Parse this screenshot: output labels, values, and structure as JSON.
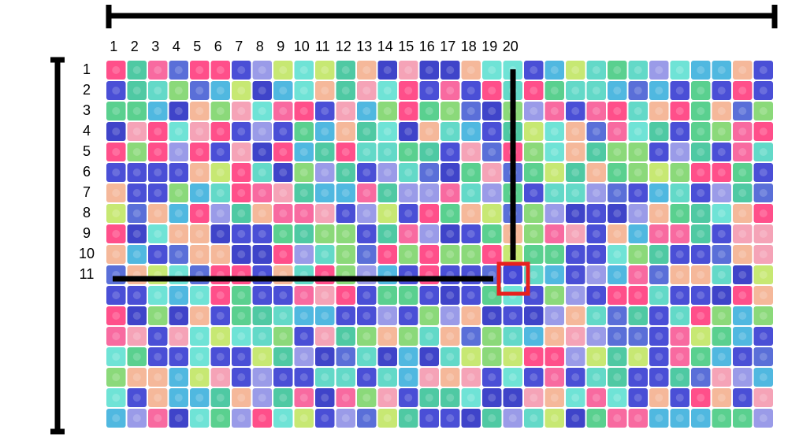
{
  "column_labels": [
    "1",
    "2",
    "3",
    "4",
    "5",
    "6",
    "7",
    "8",
    "9",
    "10",
    "11",
    "12",
    "13",
    "14",
    "15",
    "16",
    "17",
    "18",
    "19",
    "20"
  ],
  "row_labels": [
    "1",
    "2",
    "3",
    "4",
    "5",
    "6",
    "7",
    "8",
    "9",
    "10",
    "11"
  ]
}
